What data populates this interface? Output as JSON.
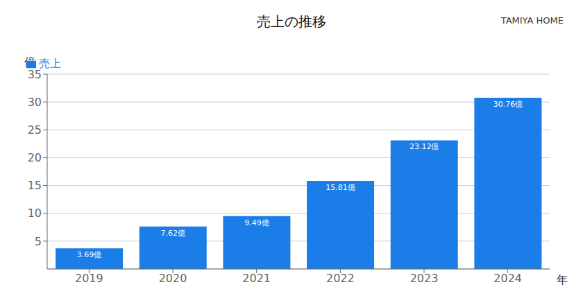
{
  "chart_data": {
    "type": "bar",
    "title": "売上の推移",
    "x_label": "年",
    "y_label": "億",
    "annotations": [
      "TAMIYA HOME"
    ],
    "categories": [
      "2019",
      "2020",
      "2021",
      "2022",
      "2023",
      "2024"
    ],
    "series": [
      {
        "name": "売上",
        "color": "#1a7de8",
        "values": [
          3.69,
          7.62,
          9.49,
          15.81,
          23.12,
          30.76
        ],
        "value_labels": [
          "3.69億",
          "7.62億",
          "9.49億",
          "15.81億",
          "23.12億",
          "30.76億"
        ]
      }
    ],
    "ylim": [
      0,
      35
    ],
    "yticks": [
      5,
      10,
      15,
      20,
      25,
      30,
      35
    ],
    "grid": true,
    "legend": "upper left",
    "data_labels": true
  }
}
